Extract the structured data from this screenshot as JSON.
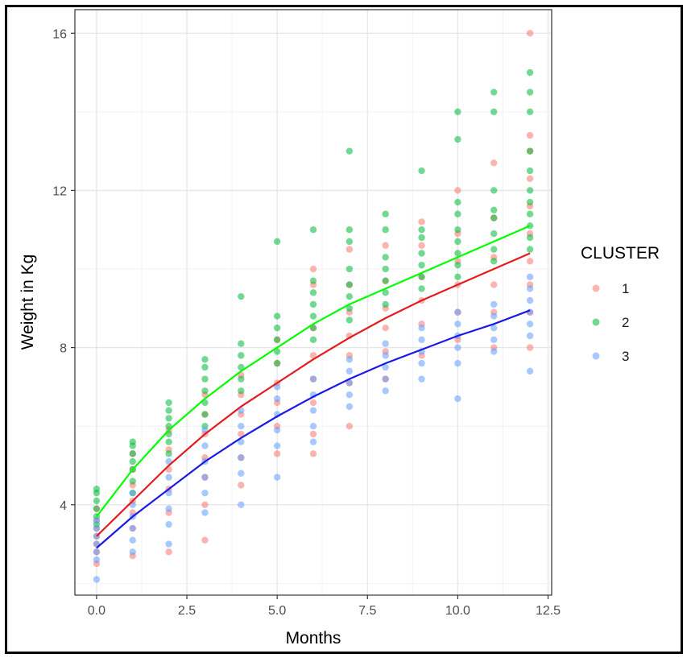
{
  "chart_data": {
    "type": "scatter",
    "title": "",
    "xlabel": "Months",
    "ylabel": "Weight in Kg",
    "xlim": [
      -0.6,
      12.6
    ],
    "ylim": [
      1.7,
      16.6
    ],
    "x_ticks": [
      0.0,
      2.5,
      5.0,
      7.5,
      10.0,
      12.5
    ],
    "x_tick_labels": [
      "0.0",
      "2.5",
      "5.0",
      "7.5",
      "10.0",
      "12.5"
    ],
    "y_ticks": [
      4,
      8,
      12,
      16
    ],
    "y_tick_labels": [
      "4",
      "8",
      "12",
      "16"
    ],
    "grid": true,
    "legend": {
      "title": "CLUSTER",
      "position": "right"
    },
    "series": [
      {
        "name": "1",
        "color": "#F8766D",
        "fit_color": "#E41A1C",
        "fit": [
          [
            0,
            3.2
          ],
          [
            1,
            4.1
          ],
          [
            2,
            5.0
          ],
          [
            3,
            5.8
          ],
          [
            4,
            6.5
          ],
          [
            5,
            7.1
          ],
          [
            6,
            7.7
          ],
          [
            7,
            8.25
          ],
          [
            8,
            8.75
          ],
          [
            9,
            9.2
          ],
          [
            10,
            9.6
          ],
          [
            11,
            10.0
          ],
          [
            12,
            10.4
          ]
        ],
        "points": [
          [
            0,
            2.5
          ],
          [
            0,
            2.8
          ],
          [
            0,
            3.0
          ],
          [
            0,
            3.2
          ],
          [
            0,
            3.4
          ],
          [
            0,
            3.6
          ],
          [
            0,
            3.9
          ],
          [
            1,
            2.7
          ],
          [
            1,
            3.4
          ],
          [
            1,
            3.8
          ],
          [
            1,
            4.1
          ],
          [
            1,
            4.5
          ],
          [
            1,
            4.9
          ],
          [
            1,
            5.3
          ],
          [
            2,
            2.8
          ],
          [
            2,
            3.8
          ],
          [
            2,
            4.4
          ],
          [
            2,
            4.9
          ],
          [
            2,
            5.4
          ],
          [
            2,
            5.9
          ],
          [
            3,
            3.1
          ],
          [
            3,
            4.0
          ],
          [
            3,
            4.7
          ],
          [
            3,
            5.2
          ],
          [
            3,
            5.8
          ],
          [
            3,
            6.3
          ],
          [
            3,
            6.8
          ],
          [
            4,
            4.5
          ],
          [
            4,
            5.2
          ],
          [
            4,
            5.8
          ],
          [
            4,
            6.3
          ],
          [
            4,
            6.8
          ],
          [
            4,
            7.3
          ],
          [
            5,
            5.3
          ],
          [
            5,
            6.0
          ],
          [
            5,
            6.6
          ],
          [
            5,
            7.1
          ],
          [
            5,
            7.6
          ],
          [
            5,
            8.2
          ],
          [
            6,
            5.3
          ],
          [
            6,
            5.8
          ],
          [
            6,
            6.6
          ],
          [
            6,
            7.2
          ],
          [
            6,
            7.8
          ],
          [
            6,
            8.5
          ],
          [
            6,
            9.6
          ],
          [
            6,
            10.0
          ],
          [
            7,
            6.0
          ],
          [
            7,
            7.1
          ],
          [
            7,
            7.8
          ],
          [
            7,
            8.3
          ],
          [
            7,
            8.9
          ],
          [
            7,
            9.6
          ],
          [
            7,
            10.5
          ],
          [
            8,
            7.2
          ],
          [
            8,
            7.9
          ],
          [
            8,
            8.5
          ],
          [
            8,
            9.0
          ],
          [
            8,
            9.7
          ],
          [
            8,
            10.6
          ],
          [
            9,
            7.8
          ],
          [
            9,
            8.6
          ],
          [
            9,
            9.2
          ],
          [
            9,
            9.8
          ],
          [
            9,
            10.6
          ],
          [
            9,
            11.2
          ],
          [
            10,
            8.2
          ],
          [
            10,
            8.9
          ],
          [
            10,
            9.6
          ],
          [
            10,
            10.2
          ],
          [
            10,
            10.9
          ],
          [
            10,
            12.0
          ],
          [
            11,
            8.0
          ],
          [
            11,
            8.9
          ],
          [
            11,
            9.6
          ],
          [
            11,
            10.3
          ],
          [
            11,
            11.3
          ],
          [
            11,
            12.7
          ],
          [
            12,
            8.0
          ],
          [
            12,
            8.9
          ],
          [
            12,
            9.6
          ],
          [
            12,
            10.2
          ],
          [
            12,
            10.9
          ],
          [
            12,
            11.6
          ],
          [
            12,
            12.3
          ],
          [
            12,
            13.0
          ],
          [
            12,
            13.4
          ],
          [
            12,
            16.0
          ]
        ]
      },
      {
        "name": "2",
        "color": "#00BA38",
        "fit_color": "#00FF00",
        "fit": [
          [
            0,
            3.7
          ],
          [
            1,
            4.9
          ],
          [
            2,
            5.9
          ],
          [
            3,
            6.7
          ],
          [
            4,
            7.4
          ],
          [
            5,
            8.0
          ],
          [
            6,
            8.6
          ],
          [
            7,
            9.1
          ],
          [
            8,
            9.5
          ],
          [
            9,
            9.9
          ],
          [
            10,
            10.3
          ],
          [
            11,
            10.7
          ],
          [
            12,
            11.1
          ]
        ],
        "points": [
          [
            0,
            3.5
          ],
          [
            0,
            3.7
          ],
          [
            0,
            3.9
          ],
          [
            0,
            4.1
          ],
          [
            0,
            4.3
          ],
          [
            0,
            4.4
          ],
          [
            1,
            4.3
          ],
          [
            1,
            4.6
          ],
          [
            1,
            4.9
          ],
          [
            1,
            5.1
          ],
          [
            1,
            5.3
          ],
          [
            1,
            5.5
          ],
          [
            1,
            5.6
          ],
          [
            2,
            5.3
          ],
          [
            2,
            5.6
          ],
          [
            2,
            5.8
          ],
          [
            2,
            6.0
          ],
          [
            2,
            6.2
          ],
          [
            2,
            6.4
          ],
          [
            2,
            6.6
          ],
          [
            3,
            6.0
          ],
          [
            3,
            6.3
          ],
          [
            3,
            6.6
          ],
          [
            3,
            6.9
          ],
          [
            3,
            7.2
          ],
          [
            3,
            7.5
          ],
          [
            3,
            7.7
          ],
          [
            4,
            6.9
          ],
          [
            4,
            7.2
          ],
          [
            4,
            7.5
          ],
          [
            4,
            7.8
          ],
          [
            4,
            8.1
          ],
          [
            4,
            9.3
          ],
          [
            5,
            7.6
          ],
          [
            5,
            7.9
          ],
          [
            5,
            8.2
          ],
          [
            5,
            8.5
          ],
          [
            5,
            8.8
          ],
          [
            5,
            10.7
          ],
          [
            6,
            8.2
          ],
          [
            6,
            8.5
          ],
          [
            6,
            8.8
          ],
          [
            6,
            9.1
          ],
          [
            6,
            9.4
          ],
          [
            6,
            9.7
          ],
          [
            6,
            11.0
          ],
          [
            7,
            8.7
          ],
          [
            7,
            9.0
          ],
          [
            7,
            9.3
          ],
          [
            7,
            9.6
          ],
          [
            7,
            10.0
          ],
          [
            7,
            10.7
          ],
          [
            7,
            11.0
          ],
          [
            7,
            13.0
          ],
          [
            8,
            9.1
          ],
          [
            8,
            9.4
          ],
          [
            8,
            9.7
          ],
          [
            8,
            10.0
          ],
          [
            8,
            10.3
          ],
          [
            8,
            11.0
          ],
          [
            8,
            11.4
          ],
          [
            9,
            9.5
          ],
          [
            9,
            9.8
          ],
          [
            9,
            10.1
          ],
          [
            9,
            10.4
          ],
          [
            9,
            10.8
          ],
          [
            9,
            11.0
          ],
          [
            9,
            12.5
          ],
          [
            10,
            9.8
          ],
          [
            10,
            10.1
          ],
          [
            10,
            10.4
          ],
          [
            10,
            10.7
          ],
          [
            10,
            11.0
          ],
          [
            10,
            11.4
          ],
          [
            10,
            11.7
          ],
          [
            10,
            13.3
          ],
          [
            10,
            14.0
          ],
          [
            11,
            10.2
          ],
          [
            11,
            10.5
          ],
          [
            11,
            10.9
          ],
          [
            11,
            11.3
          ],
          [
            11,
            11.5
          ],
          [
            11,
            12.0
          ],
          [
            11,
            14.0
          ],
          [
            11,
            14.5
          ],
          [
            12,
            10.5
          ],
          [
            12,
            10.8
          ],
          [
            12,
            11.1
          ],
          [
            12,
            11.4
          ],
          [
            12,
            11.7
          ],
          [
            12,
            12.0
          ],
          [
            12,
            12.5
          ],
          [
            12,
            13.0
          ],
          [
            12,
            14.0
          ],
          [
            12,
            14.5
          ],
          [
            12,
            15.0
          ]
        ]
      },
      {
        "name": "3",
        "color": "#619CFF",
        "fit_color": "#1A1AE6",
        "fit": [
          [
            0,
            2.9
          ],
          [
            1,
            3.7
          ],
          [
            2,
            4.4
          ],
          [
            3,
            5.1
          ],
          [
            4,
            5.7
          ],
          [
            5,
            6.25
          ],
          [
            6,
            6.75
          ],
          [
            7,
            7.2
          ],
          [
            8,
            7.6
          ],
          [
            9,
            7.95
          ],
          [
            10,
            8.3
          ],
          [
            11,
            8.6
          ],
          [
            12,
            8.95
          ]
        ],
        "points": [
          [
            0,
            2.1
          ],
          [
            0,
            2.6
          ],
          [
            0,
            2.8
          ],
          [
            0,
            3.0
          ],
          [
            0,
            3.2
          ],
          [
            0,
            3.4
          ],
          [
            0,
            3.6
          ],
          [
            1,
            2.8
          ],
          [
            1,
            3.1
          ],
          [
            1,
            3.4
          ],
          [
            1,
            3.7
          ],
          [
            1,
            4.0
          ],
          [
            1,
            4.3
          ],
          [
            2,
            3.0
          ],
          [
            2,
            3.5
          ],
          [
            2,
            3.9
          ],
          [
            2,
            4.3
          ],
          [
            2,
            4.7
          ],
          [
            2,
            5.1
          ],
          [
            3,
            3.8
          ],
          [
            3,
            4.3
          ],
          [
            3,
            4.7
          ],
          [
            3,
            5.1
          ],
          [
            3,
            5.5
          ],
          [
            3,
            5.9
          ],
          [
            4,
            4.0
          ],
          [
            4,
            4.8
          ],
          [
            4,
            5.2
          ],
          [
            4,
            5.6
          ],
          [
            4,
            6.0
          ],
          [
            4,
            6.4
          ],
          [
            5,
            4.7
          ],
          [
            5,
            5.5
          ],
          [
            5,
            5.9
          ],
          [
            5,
            6.3
          ],
          [
            5,
            6.7
          ],
          [
            5,
            7.0
          ],
          [
            6,
            5.6
          ],
          [
            6,
            6.0
          ],
          [
            6,
            6.4
          ],
          [
            6,
            6.8
          ],
          [
            6,
            7.2
          ],
          [
            7,
            6.5
          ],
          [
            7,
            6.8
          ],
          [
            7,
            7.1
          ],
          [
            7,
            7.4
          ],
          [
            7,
            7.7
          ],
          [
            8,
            6.9
          ],
          [
            8,
            7.2
          ],
          [
            8,
            7.5
          ],
          [
            8,
            7.8
          ],
          [
            8,
            8.1
          ],
          [
            9,
            7.2
          ],
          [
            9,
            7.6
          ],
          [
            9,
            7.9
          ],
          [
            9,
            8.2
          ],
          [
            9,
            8.5
          ],
          [
            10,
            6.7
          ],
          [
            10,
            7.6
          ],
          [
            10,
            8.0
          ],
          [
            10,
            8.3
          ],
          [
            10,
            8.6
          ],
          [
            10,
            8.9
          ],
          [
            11,
            7.9
          ],
          [
            11,
            8.2
          ],
          [
            11,
            8.5
          ],
          [
            11,
            8.8
          ],
          [
            11,
            9.1
          ],
          [
            12,
            7.4
          ],
          [
            12,
            8.3
          ],
          [
            12,
            8.6
          ],
          [
            12,
            8.9
          ],
          [
            12,
            9.2
          ],
          [
            12,
            9.5
          ],
          [
            12,
            9.8
          ]
        ]
      }
    ]
  }
}
